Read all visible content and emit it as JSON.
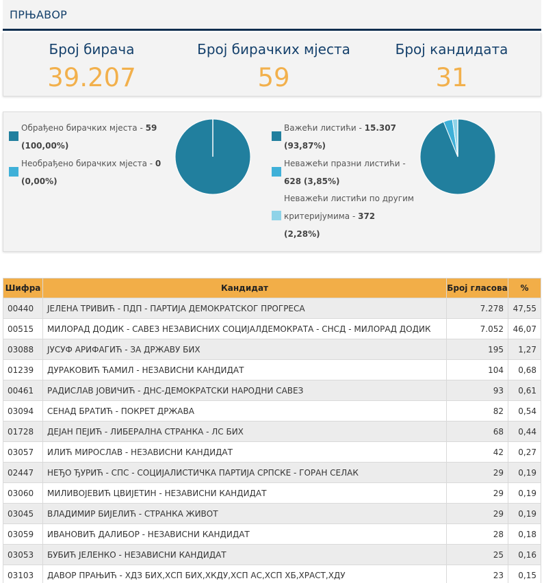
{
  "header": {
    "title": "ПРЊАВОР"
  },
  "stats": [
    {
      "label": "Број бирача",
      "value": "39.207"
    },
    {
      "label": "Број бирачких мјеста",
      "value": "59"
    },
    {
      "label": "Број кандидата",
      "value": "31"
    }
  ],
  "polling_stations": {
    "processed": {
      "text": "Обрађено бирачких мјеста - ",
      "count": "59",
      "pct": "(100,00%)",
      "fraction": 1.0,
      "color": "#217f9e"
    },
    "unprocessed": {
      "text": "Необрађено бирачких мјеста - ",
      "count": "0",
      "pct": "(0,00%)",
      "fraction": 0.0,
      "color": "#3fb0d8"
    }
  },
  "ballots": {
    "valid": {
      "text": "Важећи листићи - ",
      "count": "15.307",
      "pct": "(93,87%)",
      "fraction": 0.9387,
      "color": "#217f9e"
    },
    "invalid_empty": {
      "text1": "Неважећи празни листићи -",
      "count": "628",
      "pct": "(3,85%)",
      "fraction": 0.0385,
      "color": "#3fb0d8"
    },
    "invalid_other": {
      "text1": "Неважећи листићи по другим",
      "text2": "критеријумима - ",
      "count": "372",
      "pct": "(2,28%)",
      "fraction": 0.0228,
      "color": "#8fd3e8"
    }
  },
  "table": {
    "headers": {
      "code": "Шифра",
      "candidate": "Кандидат",
      "votes": "Број гласова",
      "pct": "%"
    },
    "rows": [
      {
        "code": "00440",
        "candidate": "ЈЕЛЕНА ТРИВИЋ - ПДП - ПАРТИЈА ДЕМОКРАТСКОГ ПРОГРЕСА",
        "votes": "7.278",
        "pct": "47,55"
      },
      {
        "code": "00515",
        "candidate": "МИЛОРАД ДОДИК - САВЕЗ НЕЗАВИСНИХ СОЦИЈАЛДЕМОКРАТА - СНСД - МИЛОРАД ДОДИК",
        "votes": "7.052",
        "pct": "46,07"
      },
      {
        "code": "03088",
        "candidate": "ЈУСУФ АРИФАГИЋ - ЗА ДРЖАВУ БИХ",
        "votes": "195",
        "pct": "1,27"
      },
      {
        "code": "01239",
        "candidate": "ДУРАКОВИЋ ЋАМИЛ - НЕЗАВИСНИ КАНДИДАТ",
        "votes": "104",
        "pct": "0,68"
      },
      {
        "code": "00461",
        "candidate": "РАДИСЛАВ ЈОВИЧИЋ - ДНС-ДЕМОКРАТСКИ НАРОДНИ САВЕЗ",
        "votes": "93",
        "pct": "0,61"
      },
      {
        "code": "03094",
        "candidate": "СЕНАД БРАТИЋ - ПОКРЕТ ДРЖАВА",
        "votes": "82",
        "pct": "0,54"
      },
      {
        "code": "01728",
        "candidate": "ДЕЈАН ПЕЈИЋ - ЛИБЕРАЛНА СТРАНКА - ЛС БИХ",
        "votes": "68",
        "pct": "0,44"
      },
      {
        "code": "03057",
        "candidate": "ИЛИЋ МИРОСЛАВ - НЕЗАВИСНИ КАНДИДАТ",
        "votes": "42",
        "pct": "0,27"
      },
      {
        "code": "02447",
        "candidate": "НЕЂО ЂУРИЋ - СПС - СОЦИЈАЛИСТИЧКА ПАРТИЈА СРПСКЕ - ГОРАН СЕЛАК",
        "votes": "29",
        "pct": "0,19"
      },
      {
        "code": "03060",
        "candidate": "МИЛИВОЈЕВИЋ ЦВИЈЕТИН - НЕЗАВИСНИ КАНДИДАТ",
        "votes": "29",
        "pct": "0,19"
      },
      {
        "code": "03045",
        "candidate": "ВЛАДИМИР БИЈЕЛИЋ - СТРАНКА ЖИВОТ",
        "votes": "29",
        "pct": "0,19"
      },
      {
        "code": "03059",
        "candidate": "ИВАНОВИЋ ДАЛИБОР - НЕЗАВИСНИ КАНДИДАТ",
        "votes": "28",
        "pct": "0,18"
      },
      {
        "code": "03053",
        "candidate": "БУБИЋ ЈЕЛЕНКО - НЕЗАВИСНИ КАНДИДАТ",
        "votes": "25",
        "pct": "0,16"
      },
      {
        "code": "03103",
        "candidate": "ДАВОР ПРАЊИЋ - ХДЗ БИХ,ХСП БИХ,ХКДУ,ХСП АС,ХСП ХБ,ХРАСТ,ХДУ",
        "votes": "23",
        "pct": "0,15"
      }
    ]
  }
}
